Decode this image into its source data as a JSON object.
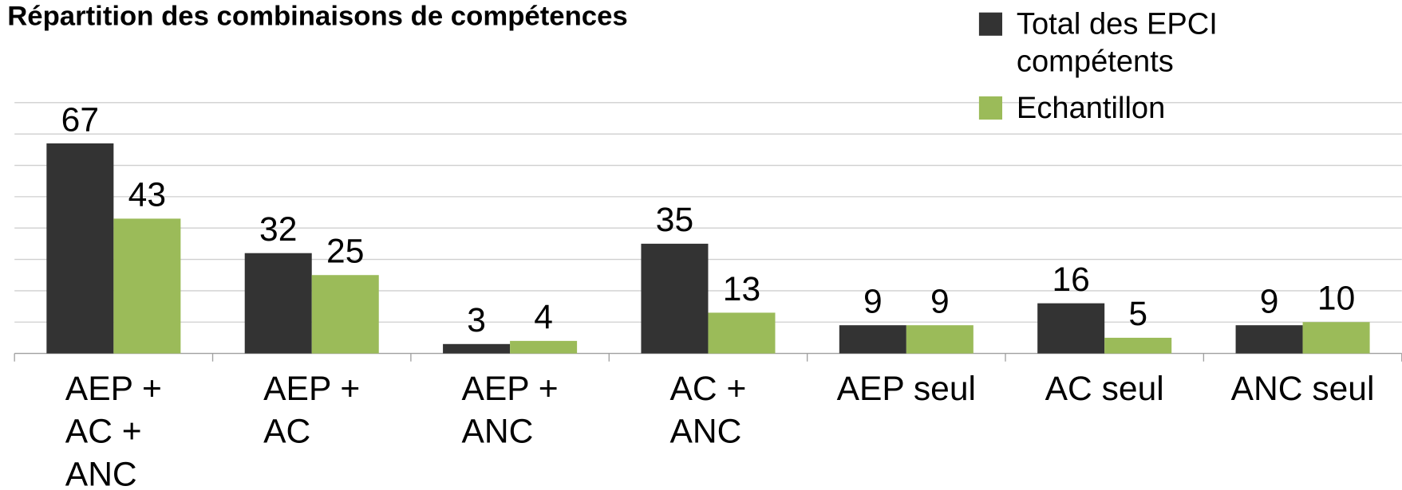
{
  "chart_data": {
    "type": "bar",
    "title": "Répartition des combinaisons de compétences",
    "categories": [
      "AEP +\nAC +\nANC",
      "AEP +\nAC",
      "AEP +\nANC",
      "AC +\nANC",
      "AEP seul",
      "AC seul",
      "ANC seul"
    ],
    "series": [
      {
        "name": "Total des EPCI compétents",
        "color": "#333333",
        "values": [
          67,
          32,
          3,
          35,
          9,
          16,
          9
        ]
      },
      {
        "name": "Echantillon",
        "color": "#9bbb59",
        "values": [
          43,
          25,
          4,
          13,
          9,
          5,
          10
        ]
      }
    ],
    "ylim": [
      0,
      80
    ],
    "yticks": [
      0,
      10,
      20,
      30,
      40,
      50,
      60,
      70,
      80
    ],
    "grid": true,
    "legend": "top-right"
  }
}
